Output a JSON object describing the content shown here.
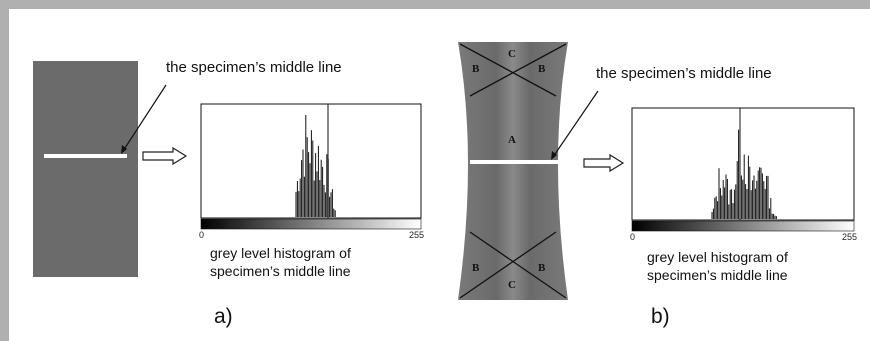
{
  "panel_a": {
    "middle_line_label": "the specimen’s middle line",
    "histogram_caption_line1": "grey level histogram of",
    "histogram_caption_line2": "specimen’s middle line",
    "axis_min": "0",
    "axis_max": "255",
    "panel_label": "a)"
  },
  "panel_b": {
    "middle_line_label": "the specimen’s middle line",
    "histogram_caption_line1": "grey level histogram of",
    "histogram_caption_line2": "specimen’s middle line",
    "axis_min": "0",
    "axis_max": "255",
    "panel_label": "b)",
    "regions": {
      "top": "C",
      "side": "B",
      "center": "A",
      "bottom": "C"
    }
  },
  "colors": {
    "frame": "#b0b0b0",
    "specimen": "#6b6b6b",
    "line": "#ffffff"
  }
}
